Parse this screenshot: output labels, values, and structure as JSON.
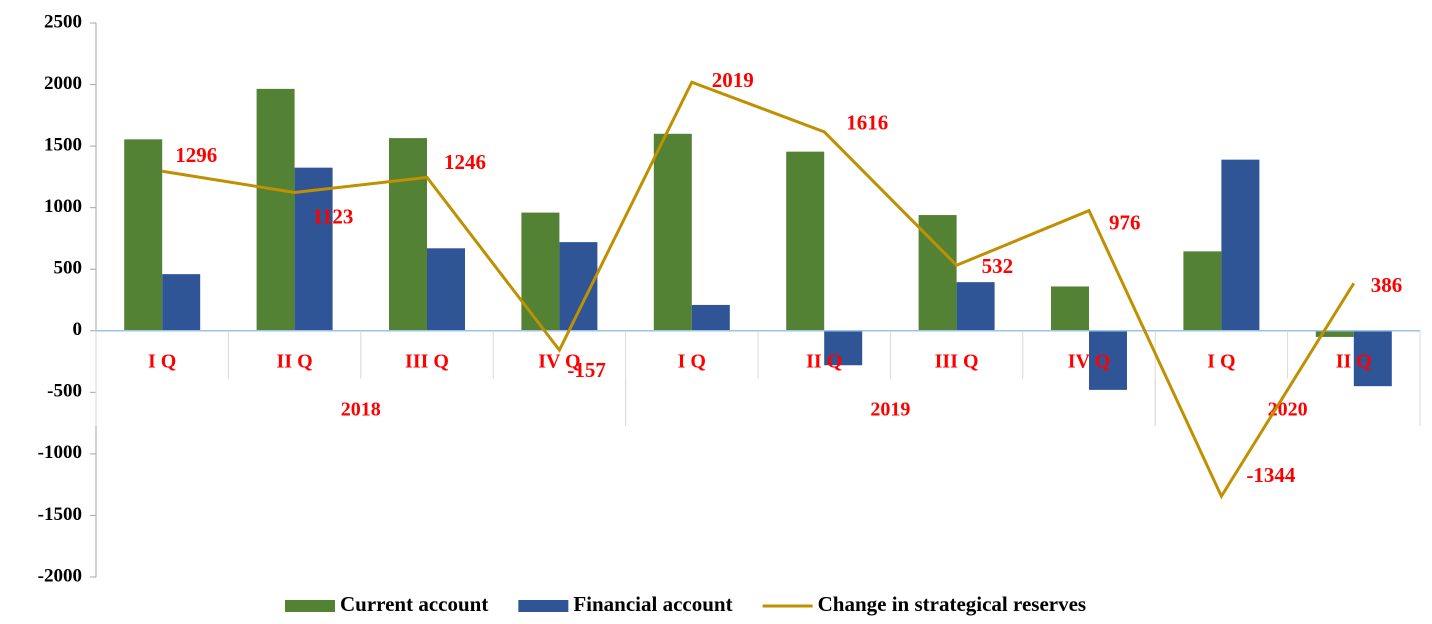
{
  "chart_data": {
    "type": "bar_line",
    "categories": [
      "I Q",
      "II Q",
      "III Q",
      "IV Q",
      "I Q",
      "II Q",
      "III Q",
      "IV Q",
      "I Q",
      "II Q"
    ],
    "groups": [
      {
        "label": "2018",
        "count": 4
      },
      {
        "label": "2019",
        "count": 4
      },
      {
        "label": "2020",
        "count": 2
      }
    ],
    "series": [
      {
        "name": "Current account",
        "type": "bar",
        "color": "#548235",
        "values": [
          1555,
          1965,
          1565,
          960,
          1600,
          1455,
          940,
          360,
          645,
          -50
        ]
      },
      {
        "name": "Financial account",
        "type": "bar",
        "color": "#2f5597",
        "values": [
          460,
          1325,
          670,
          720,
          210,
          -280,
          395,
          -480,
          1390,
          -450
        ]
      },
      {
        "name": "Change in strategical reserves",
        "type": "line",
        "color": "#bf9000",
        "values": [
          1296,
          1123,
          1246,
          -157,
          2019,
          1616,
          532,
          976,
          -1344,
          386
        ]
      }
    ],
    "ylim": [
      -2000,
      2500
    ],
    "yticks": [
      -2000,
      -1500,
      -1000,
      -500,
      0,
      500,
      1000,
      1500,
      2000,
      2500
    ],
    "legend": "bottom"
  }
}
